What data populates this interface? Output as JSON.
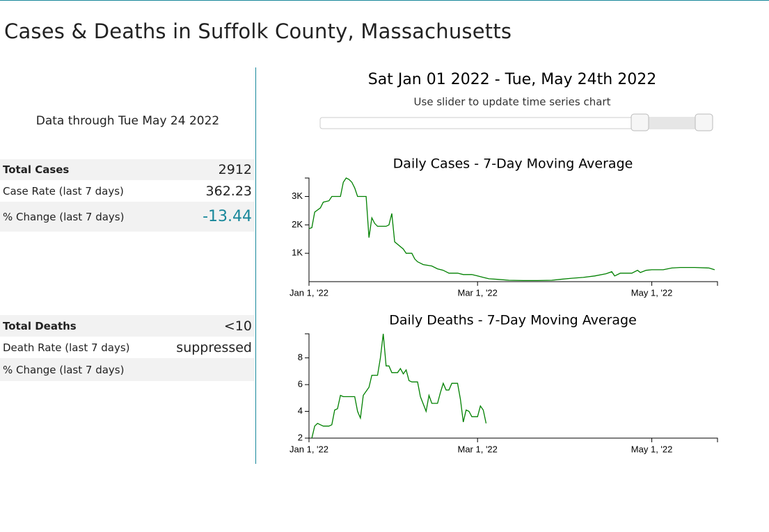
{
  "header": {
    "title": "Cases & Deaths in Suffolk County, Massachusetts"
  },
  "summary": {
    "date_note": "Data through Tue May 24 2022",
    "change_color": "#17879a",
    "cases": [
      {
        "label": "Total Cases",
        "value": 2912
      },
      {
        "label": "Case Rate (last 7 days)",
        "value": 362.23
      },
      {
        "label": "% Change (last 7 days)",
        "value": -13.44
      }
    ],
    "deaths": [
      {
        "label": "Total Deaths",
        "value": "<10"
      },
      {
        "label": "Death Rate (last 7 days)",
        "value": "suppressed"
      },
      {
        "label": "% Change (last 7 days)"
      }
    ]
  },
  "slider": {
    "range_label": "Sat Jan 01 2022 - Tue, May 24th 2022",
    "hint": "Use slider to update time series chart"
  },
  "chart_data": [
    {
      "type": "line",
      "title": "Daily Cases - 7-Day Moving Average",
      "color": "#008000",
      "x": [
        "2022-01-01",
        "2022-01-02",
        "2022-01-03",
        "2022-01-05",
        "2022-01-06",
        "2022-01-08",
        "2022-01-09",
        "2022-01-12",
        "2022-01-13",
        "2022-01-14",
        "2022-01-15",
        "2022-01-16",
        "2022-01-17",
        "2022-01-18",
        "2022-01-21",
        "2022-01-22",
        "2022-01-23",
        "2022-01-24",
        "2022-01-25",
        "2022-01-28",
        "2022-01-29",
        "2022-01-30",
        "2022-01-31",
        "2022-02-03",
        "2022-02-04",
        "2022-02-06",
        "2022-02-07",
        "2022-02-08",
        "2022-02-10",
        "2022-02-13",
        "2022-02-15",
        "2022-02-17",
        "2022-02-19",
        "2022-02-22",
        "2022-02-24",
        "2022-02-27",
        "2022-03-01",
        "2022-03-03",
        "2022-03-05",
        "2022-03-08",
        "2022-03-12",
        "2022-03-17",
        "2022-03-22",
        "2022-03-27",
        "2022-03-30",
        "2022-04-03",
        "2022-04-07",
        "2022-04-11",
        "2022-04-15",
        "2022-04-17",
        "2022-04-18",
        "2022-04-20",
        "2022-04-24",
        "2022-04-26",
        "2022-04-27",
        "2022-04-29",
        "2022-05-01",
        "2022-05-05",
        "2022-05-08",
        "2022-05-11",
        "2022-05-16",
        "2022-05-21",
        "2022-05-23"
      ],
      "values": [
        1870,
        1900,
        2450,
        2600,
        2800,
        2850,
        3000,
        3000,
        3500,
        3650,
        3600,
        3500,
        3300,
        3000,
        3000,
        1550,
        2250,
        2050,
        1950,
        1950,
        2000,
        2400,
        1400,
        1150,
        1000,
        1000,
        800,
        700,
        600,
        550,
        450,
        400,
        300,
        300,
        250,
        250,
        200,
        150,
        100,
        80,
        50,
        40,
        40,
        50,
        80,
        120,
        150,
        200,
        280,
        350,
        200,
        300,
        300,
        400,
        320,
        400,
        420,
        420,
        480,
        500,
        500,
        480,
        420
      ],
      "xlim": [
        "2022-01-01",
        "2022-05-24"
      ],
      "xticks": [
        {
          "value": "2022-01-01",
          "label": "Jan 1, '22"
        },
        {
          "value": "2022-03-01",
          "label": "Mar 1, '22"
        },
        {
          "value": "2022-05-01",
          "label": "May 1, '22"
        }
      ],
      "ylim": [
        0,
        3650
      ],
      "yticks": [
        {
          "value": 1000,
          "label": "1K"
        },
        {
          "value": 2000,
          "label": "2K"
        },
        {
          "value": 3000,
          "label": "3K"
        }
      ]
    },
    {
      "type": "line",
      "title": "Daily Deaths - 7-Day Moving Average",
      "color": "#008000",
      "x": [
        "2022-01-02",
        "2022-01-03",
        "2022-01-04",
        "2022-01-05",
        "2022-01-06",
        "2022-01-08",
        "2022-01-09",
        "2022-01-10",
        "2022-01-11",
        "2022-01-12",
        "2022-01-13",
        "2022-01-17",
        "2022-01-18",
        "2022-01-19",
        "2022-01-20",
        "2022-01-22",
        "2022-01-23",
        "2022-01-25",
        "2022-01-26",
        "2022-01-27",
        "2022-01-28",
        "2022-01-29",
        "2022-01-30",
        "2022-02-01",
        "2022-02-02",
        "2022-02-03",
        "2022-02-04",
        "2022-02-05",
        "2022-02-06",
        "2022-02-08",
        "2022-02-09",
        "2022-02-11",
        "2022-02-12",
        "2022-02-13",
        "2022-02-15",
        "2022-02-16",
        "2022-02-17",
        "2022-02-18",
        "2022-02-19",
        "2022-02-20",
        "2022-02-22",
        "2022-02-23",
        "2022-02-24",
        "2022-02-25",
        "2022-02-26",
        "2022-02-27",
        "2022-03-01",
        "2022-03-02",
        "2022-03-03",
        "2022-03-04"
      ],
      "values": [
        2,
        2.9,
        3.1,
        3.0,
        2.9,
        2.9,
        3.0,
        4.1,
        4.2,
        5.2,
        5.1,
        5.1,
        4.0,
        3.5,
        5.2,
        5.8,
        6.7,
        6.7,
        8.0,
        9.8,
        7.4,
        7.4,
        6.9,
        6.9,
        7.2,
        6.8,
        7.1,
        6.3,
        6.2,
        6.2,
        5.1,
        4.0,
        5.2,
        4.6,
        4.6,
        5.4,
        6.1,
        5.6,
        5.6,
        6.1,
        6.1,
        4.9,
        3.2,
        4.1,
        4.0,
        3.6,
        3.6,
        4.4,
        4.1,
        3.1
      ],
      "xlim": [
        "2022-01-01",
        "2022-05-24"
      ],
      "xticks": [
        {
          "value": "2022-01-01",
          "label": "Jan 1, '22"
        },
        {
          "value": "2022-03-01",
          "label": "Mar 1, '22"
        },
        {
          "value": "2022-05-01",
          "label": "May 1, '22"
        }
      ],
      "ylim": [
        2,
        9.8
      ],
      "yticks": [
        2,
        4,
        6,
        8
      ]
    }
  ]
}
